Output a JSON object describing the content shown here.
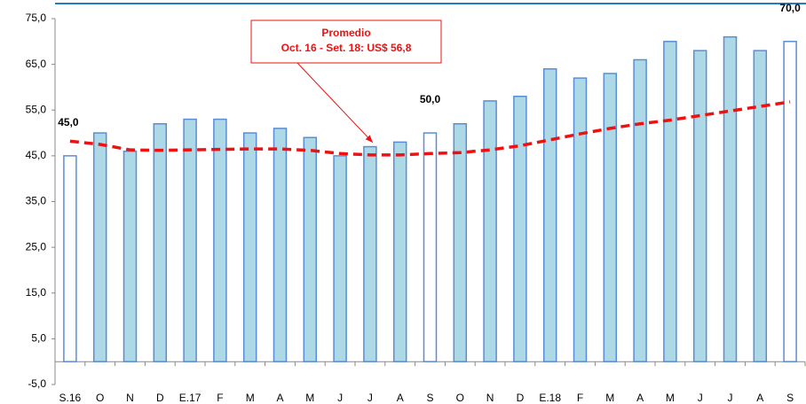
{
  "chart_data": {
    "type": "bar-line",
    "categories": [
      "S.16",
      "O",
      "N",
      "D",
      "E.17",
      "F",
      "M",
      "A",
      "M",
      "J",
      "J",
      "A",
      "S",
      "O",
      "N",
      "D",
      "E.18",
      "F",
      "M",
      "A",
      "M",
      "J",
      "J",
      "A",
      "S"
    ],
    "series": [
      {
        "type": "bar",
        "color": "#add8e6",
        "edge_color": "#5b8dd6",
        "colors": [
          "#ffffff",
          "#add8e6",
          "#add8e6",
          "#add8e6",
          "#add8e6",
          "#add8e6",
          "#add8e6",
          "#add8e6",
          "#add8e6",
          "#add8e6",
          "#add8e6",
          "#add8e6",
          "#ffffff",
          "#add8e6",
          "#add8e6",
          "#add8e6",
          "#add8e6",
          "#add8e6",
          "#add8e6",
          "#add8e6",
          "#add8e6",
          "#add8e6",
          "#add8e6",
          "#add8e6",
          "#ffffff"
        ],
        "values": [
          45,
          50,
          46,
          52,
          53,
          53,
          50,
          51,
          49,
          45,
          47,
          48,
          50,
          52,
          57,
          58,
          64,
          62,
          63,
          66,
          70,
          68,
          71,
          68,
          70
        ],
        "value_labels": [
          "45,0",
          null,
          null,
          null,
          null,
          null,
          null,
          null,
          null,
          null,
          null,
          null,
          "50,0",
          null,
          null,
          null,
          null,
          null,
          null,
          null,
          null,
          null,
          null,
          null,
          "70,0"
        ]
      },
      {
        "type": "line",
        "color": "#ee1111",
        "dashed": true,
        "values": [
          48.2,
          47.5,
          46.3,
          46.2,
          46.3,
          46.4,
          46.5,
          46.5,
          46.2,
          45.5,
          45.2,
          45.2,
          45.5,
          45.7,
          46.3,
          47.2,
          48.5,
          49.8,
          51,
          52,
          52.8,
          53.8,
          54.8,
          55.8,
          56.8
        ]
      }
    ],
    "ylim": [
      -5,
      75
    ],
    "yticks": [
      {
        "value": -5,
        "label": "-5,0"
      },
      {
        "value": 5,
        "label": "5,0"
      },
      {
        "value": 15,
        "label": "15,0"
      },
      {
        "value": 25,
        "label": "25,0"
      },
      {
        "value": 35,
        "label": "35,0"
      },
      {
        "value": 45,
        "label": "45,0"
      },
      {
        "value": 55,
        "label": "55,0"
      },
      {
        "value": 65,
        "label": "65,0"
      },
      {
        "value": 75,
        "label": "75,0"
      }
    ],
    "annotation": {
      "lines": [
        "Promedio",
        "Oct. 16 - Set. 18: US$ 56,8"
      ],
      "color": "#ee1111",
      "points_to": 10
    }
  }
}
